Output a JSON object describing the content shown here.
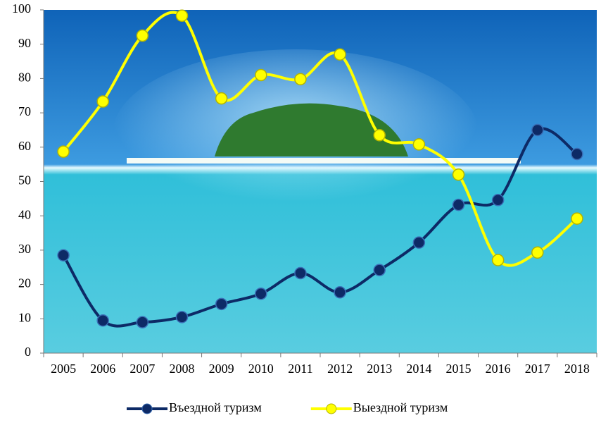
{
  "chart_data": {
    "type": "line",
    "categories": [
      "2005",
      "2006",
      "2007",
      "2008",
      "2009",
      "2010",
      "2011",
      "2012",
      "2013",
      "2014",
      "2015",
      "2016",
      "2017",
      "2018"
    ],
    "series": [
      {
        "name": "Въездной туризм",
        "color": "#0d2a66",
        "values": [
          28.5,
          9.5,
          9,
          10.5,
          14.3,
          17.3,
          23.3,
          17.7,
          24.2,
          32.2,
          43.2,
          44.6,
          65,
          58
        ]
      },
      {
        "name": "Выездной туризм",
        "color": "#ffff00",
        "values": [
          58.7,
          73.3,
          92.5,
          98.3,
          74.2,
          81,
          79.8,
          87,
          63.5,
          60.8,
          52,
          27.1,
          29.3,
          39.2
        ]
      }
    ],
    "ylim": [
      0,
      100
    ],
    "yticks": [
      0,
      10,
      20,
      30,
      40,
      50,
      60,
      70,
      80,
      90,
      100
    ],
    "smooth": true,
    "legend": "bottom"
  }
}
